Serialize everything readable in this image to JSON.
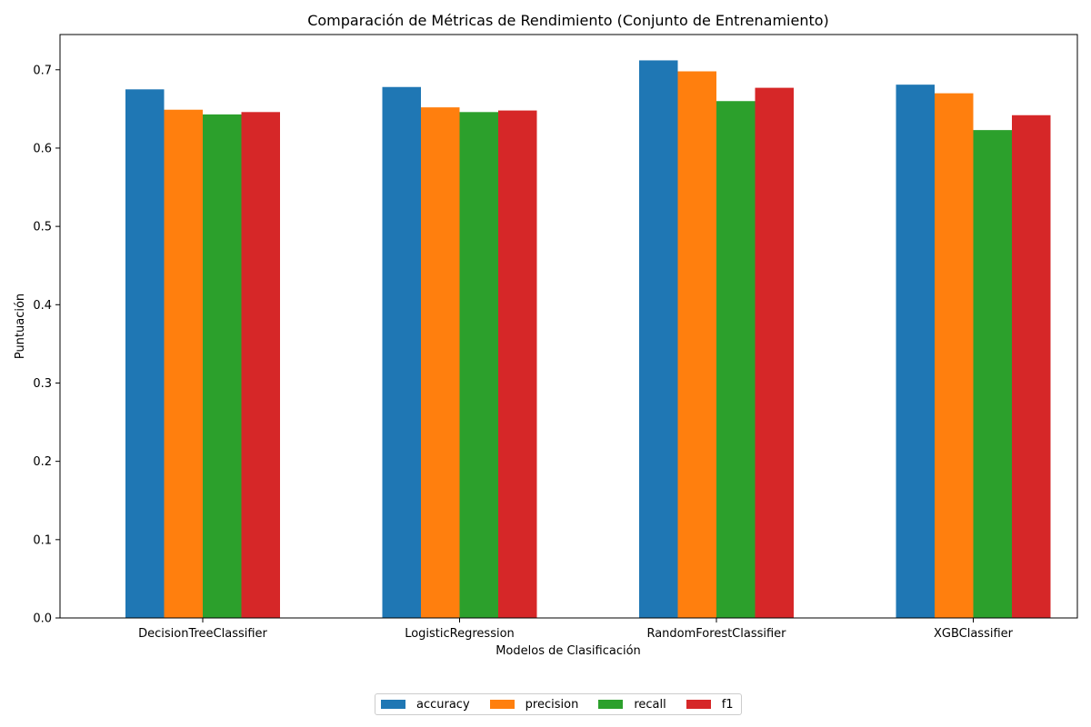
{
  "chart_data": {
    "type": "bar",
    "title": "Comparación de Métricas de Rendimiento (Conjunto de Entrenamiento)",
    "xlabel": "Modelos de Clasificación",
    "ylabel": "Puntuación",
    "categories": [
      "DecisionTreeClassifier",
      "LogisticRegression",
      "RandomForestClassifier",
      "XGBClassifier"
    ],
    "series": [
      {
        "name": "accuracy",
        "color": "#1f77b4",
        "values": [
          0.675,
          0.678,
          0.712,
          0.681
        ]
      },
      {
        "name": "precision",
        "color": "#ff7f0e",
        "values": [
          0.649,
          0.652,
          0.698,
          0.67
        ]
      },
      {
        "name": "recall",
        "color": "#2ca02c",
        "values": [
          0.643,
          0.646,
          0.66,
          0.623
        ]
      },
      {
        "name": "f1",
        "color": "#d62728",
        "values": [
          0.646,
          0.648,
          0.677,
          0.642
        ]
      }
    ],
    "ylim": [
      0,
      0.745
    ],
    "yticks": [
      "0.0",
      "0.1",
      "0.2",
      "0.3",
      "0.4",
      "0.5",
      "0.6",
      "0.7"
    ],
    "grid": false,
    "legend_position": "bottom-center"
  }
}
